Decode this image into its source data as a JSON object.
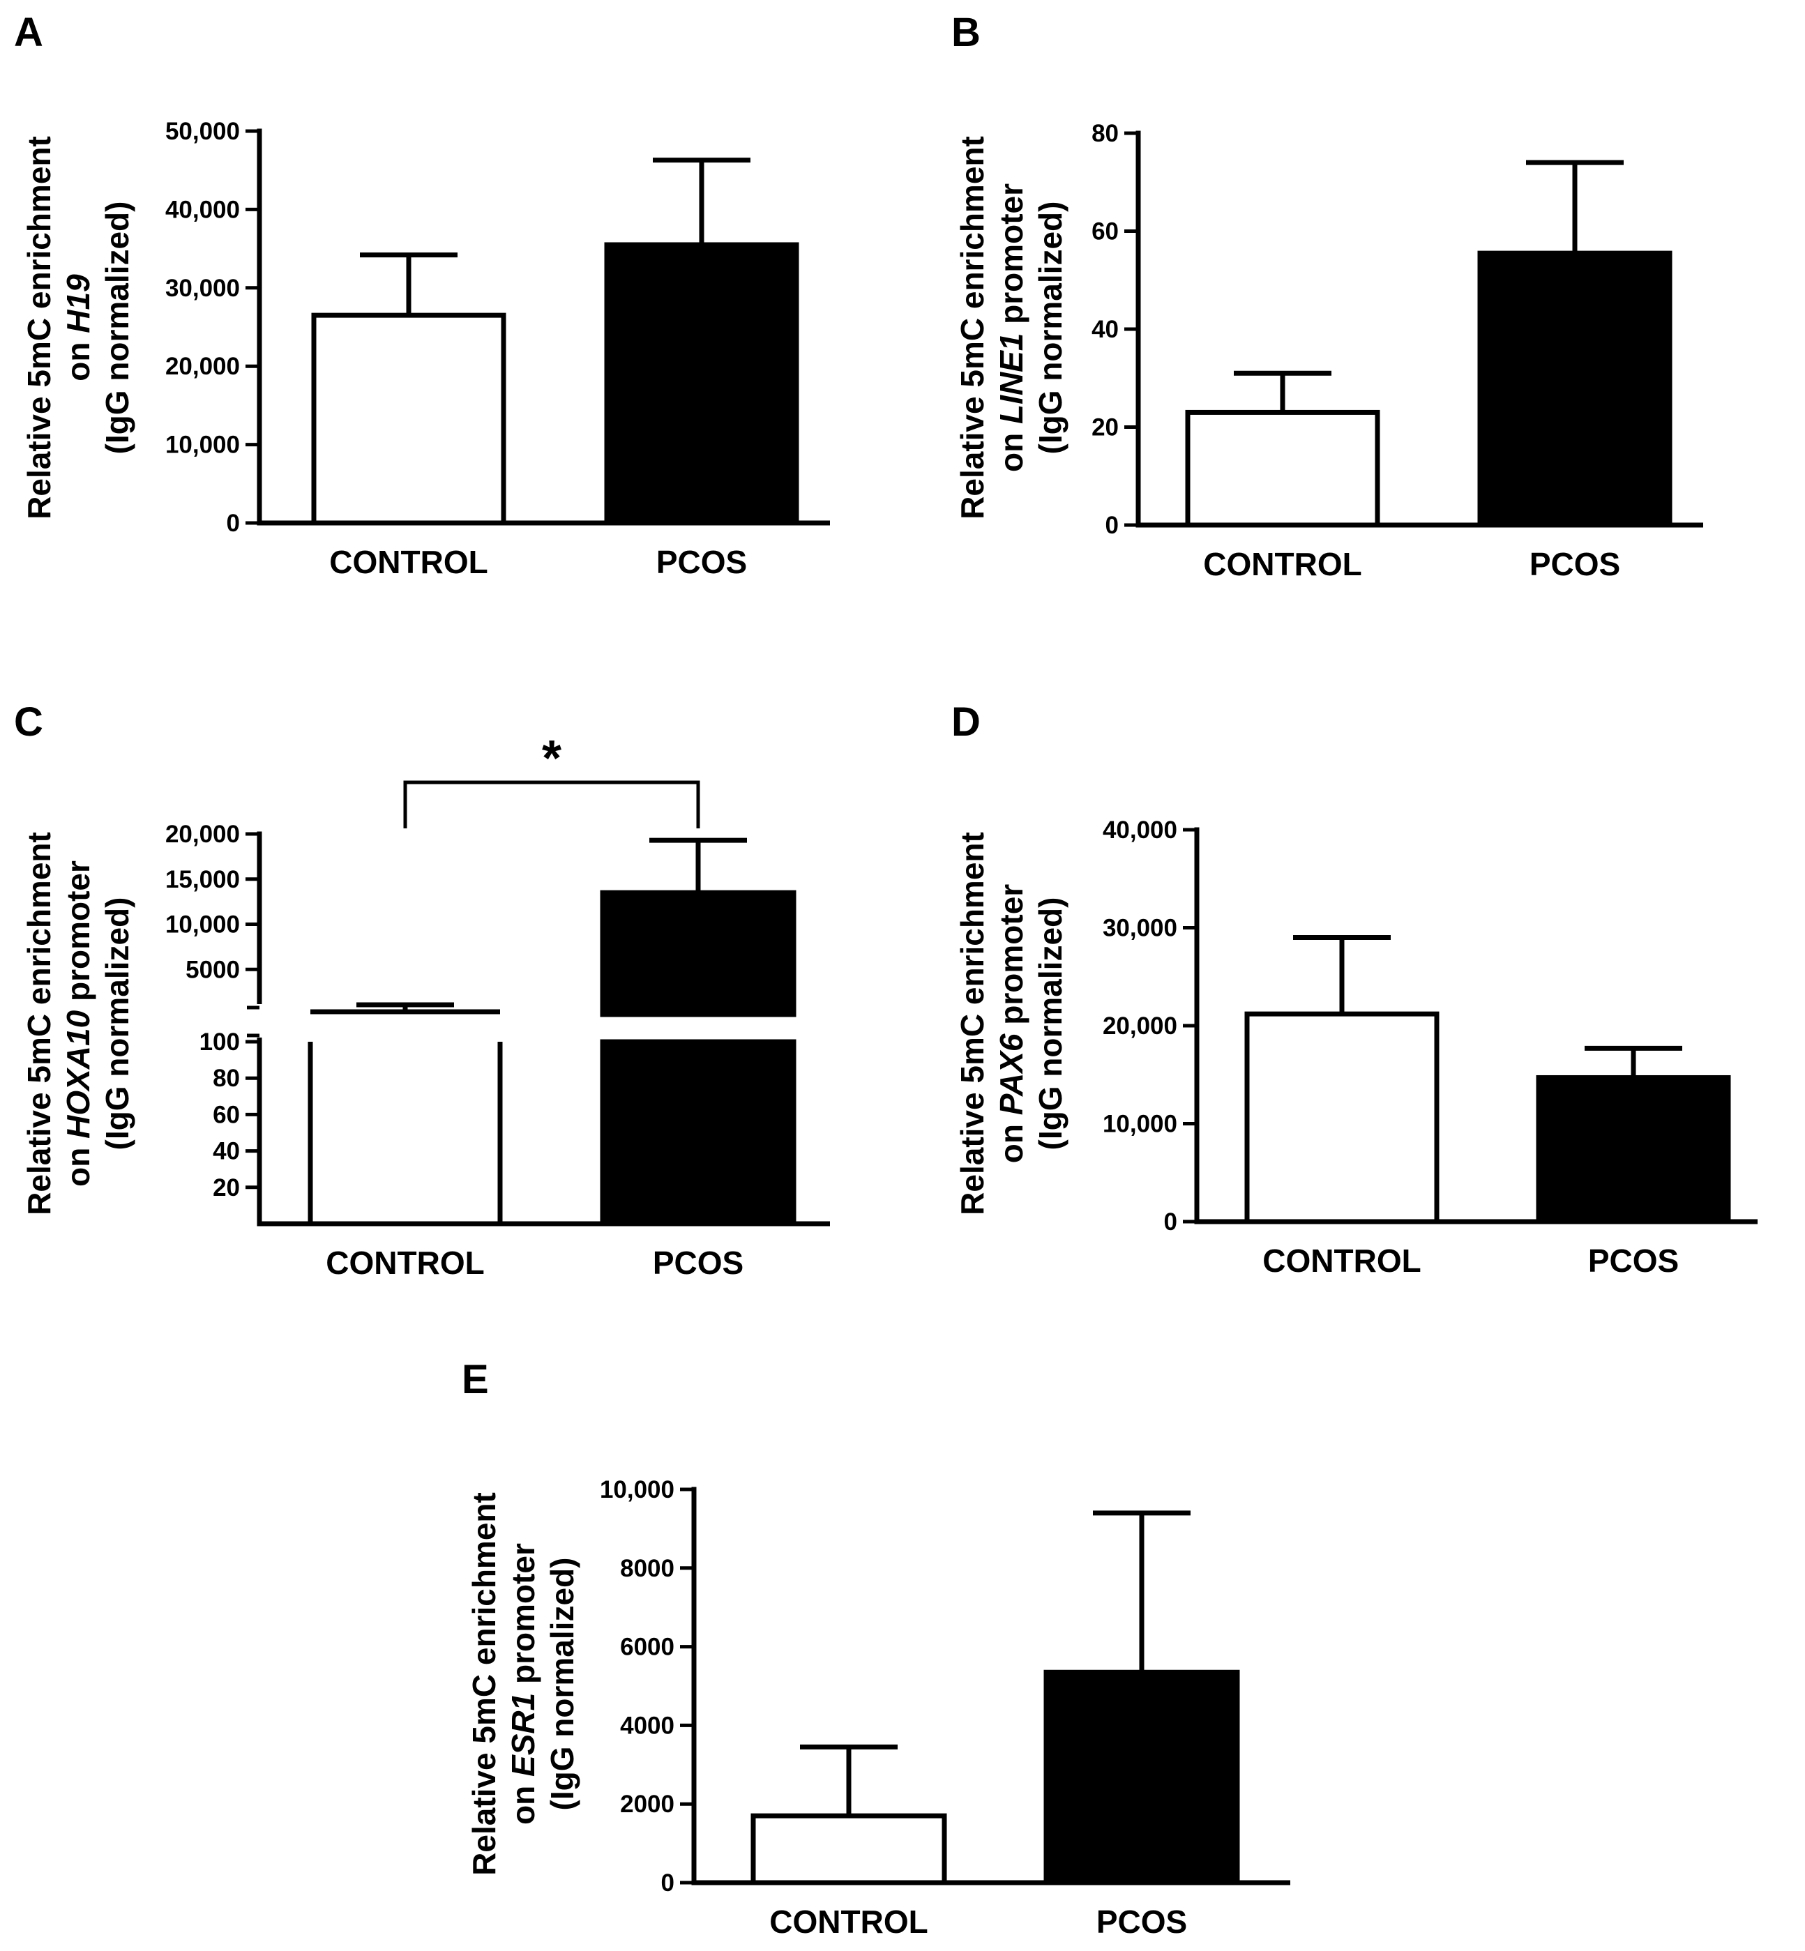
{
  "figure": {
    "panels": [
      "A",
      "B",
      "C",
      "D",
      "E"
    ]
  },
  "chart_data": [
    {
      "panel": "A",
      "type": "bar",
      "categories": [
        "CONTROL",
        "PCOS"
      ],
      "values": [
        26500,
        35500
      ],
      "errors": [
        7700,
        10800
      ],
      "fills": [
        "#ffffff",
        "#000000"
      ],
      "ylim": [
        0,
        50000
      ],
      "ticks": [
        0,
        10000,
        20000,
        30000,
        40000,
        50000
      ],
      "tick_labels": [
        "0",
        "10,000",
        "20,000",
        "30,000",
        "40,000",
        "50,000"
      ],
      "ylabel": [
        "Relative 5mC enrichment",
        "on H19",
        "(IgG normalized)"
      ],
      "ylabel_italic": "H19"
    },
    {
      "panel": "B",
      "type": "bar",
      "categories": [
        "CONTROL",
        "PCOS"
      ],
      "values": [
        23,
        55.5
      ],
      "errors": [
        8,
        18.5
      ],
      "fills": [
        "#ffffff",
        "#000000"
      ],
      "ylim": [
        0,
        80
      ],
      "ticks": [
        0,
        20,
        40,
        60,
        80
      ],
      "tick_labels": [
        "0",
        "20",
        "40",
        "60",
        "80"
      ],
      "ylabel": [
        "Relative 5mC enrichment",
        "on LINE1 promoter",
        "(IgG normalized)"
      ],
      "ylabel_italic": "LINE1"
    },
    {
      "panel": "C",
      "type": "bar",
      "broken_axis": true,
      "categories": [
        "CONTROL",
        "PCOS"
      ],
      "values": [
        150,
        13500
      ],
      "errors": [
        650,
        5800
      ],
      "fills": [
        "#ffffff",
        "#000000"
      ],
      "lower_ylim": [
        0,
        100
      ],
      "upper_ylim": [
        0,
        20000
      ],
      "lower_ticks": [
        20,
        40,
        60,
        80,
        100
      ],
      "lower_tick_labels": [
        "20",
        "40",
        "60",
        "80",
        "100"
      ],
      "upper_ticks": [
        5000,
        10000,
        15000,
        20000
      ],
      "upper_tick_labels": [
        "5000",
        "10,000",
        "15,000",
        "20,000"
      ],
      "significance": "*",
      "ylabel": [
        "Relative 5mC enrichment",
        "on HOXA10 promoter",
        "(IgG normalized)"
      ],
      "ylabel_italic": "HOXA10"
    },
    {
      "panel": "D",
      "type": "bar",
      "categories": [
        "CONTROL",
        "PCOS"
      ],
      "values": [
        21200,
        14700
      ],
      "errors": [
        7800,
        3000
      ],
      "fills": [
        "#ffffff",
        "#000000"
      ],
      "ylim": [
        0,
        40000
      ],
      "ticks": [
        0,
        10000,
        20000,
        30000,
        40000
      ],
      "tick_labels": [
        "0",
        "10,000",
        "20,000",
        "30,000",
        "40,000"
      ],
      "ylabel": [
        "Relative 5mC enrichment",
        "on PAX6 promoter",
        "(IgG normalized)"
      ],
      "ylabel_italic": "PAX6"
    },
    {
      "panel": "E",
      "type": "bar",
      "categories": [
        "CONTROL",
        "PCOS"
      ],
      "values": [
        1700,
        5350
      ],
      "errors": [
        1750,
        4050
      ],
      "fills": [
        "#ffffff",
        "#000000"
      ],
      "ylim": [
        0,
        10000
      ],
      "ticks": [
        0,
        2000,
        4000,
        6000,
        8000,
        10000
      ],
      "tick_labels": [
        "0",
        "2000",
        "4000",
        "6000",
        "8000",
        "10,000"
      ],
      "ylabel": [
        "Relative 5mC enrichment",
        "on ESR1 promoter",
        "(IgG normalized)"
      ],
      "ylabel_italic": "ESR1"
    }
  ]
}
